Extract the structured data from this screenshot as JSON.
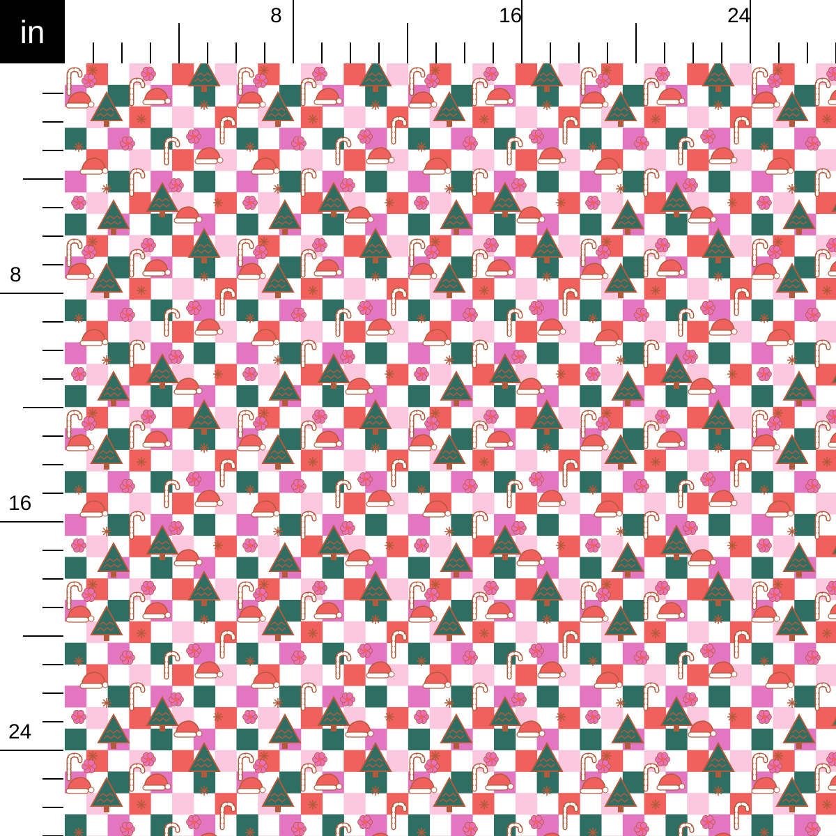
{
  "ruler": {
    "unit": "in",
    "top_labels": [
      "8",
      "16",
      "24"
    ],
    "left_labels": [
      "8",
      "16",
      "24"
    ],
    "label_inches": [
      8,
      16,
      24
    ]
  },
  "fabric": {
    "pattern": "checkerboard christmas print",
    "motifs": [
      "christmas-tree",
      "santa-hat",
      "candy-cane",
      "flower",
      "star"
    ],
    "colors": {
      "white": "#ffffff",
      "red": "#f0605c",
      "light_pink": "#fbc8e0",
      "magenta": "#e376c0",
      "teal": "#2f6e62",
      "brown": "#b35a3a",
      "flower": "#ea6fb4"
    }
  }
}
